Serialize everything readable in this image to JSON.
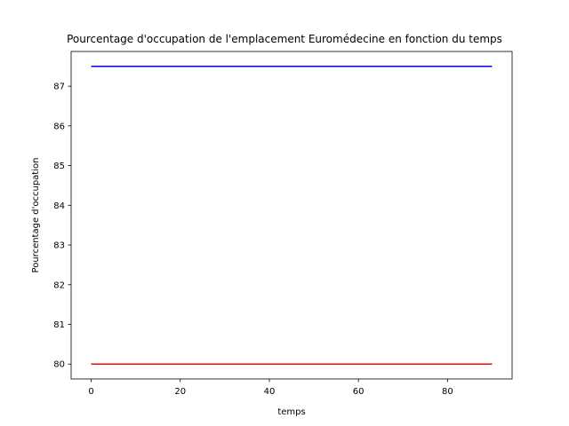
{
  "chart_data": {
    "type": "line",
    "title": "Pourcentage d'occupation de l'emplacement Euromédecine en fonction du temps",
    "xlabel": "temps",
    "ylabel": "Pourcentage d'occupation",
    "xlim": [
      -4.5,
      94.5
    ],
    "ylim": [
      79.625,
      87.875
    ],
    "xticks": [
      0,
      20,
      40,
      60,
      80
    ],
    "yticks": [
      80,
      81,
      82,
      83,
      84,
      85,
      86,
      87
    ],
    "grid": false,
    "legend": "none",
    "series": [
      {
        "color": "#0000ff",
        "x": [
          0,
          90
        ],
        "y": [
          87.5,
          87.5
        ]
      },
      {
        "color": "#ff0000",
        "x": [
          0,
          90
        ],
        "y": [
          80,
          80
        ]
      }
    ]
  }
}
